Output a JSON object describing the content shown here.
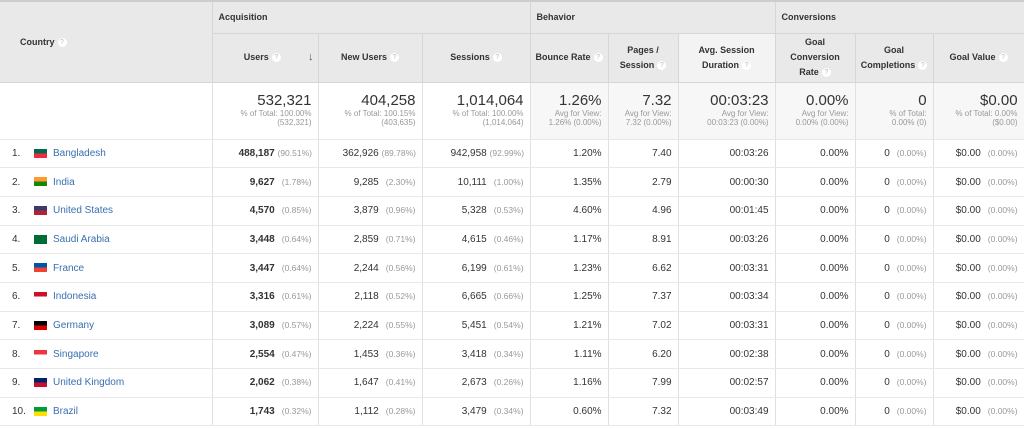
{
  "header": {
    "country": "Country",
    "groups": [
      "Acquisition",
      "Behavior",
      "Conversions"
    ],
    "columns": [
      "Users",
      "New Users",
      "Sessions",
      "Bounce Rate",
      "Pages / Session",
      "Avg. Session Duration",
      "Goal Conversion Rate",
      "Goal Completions",
      "Goal Value"
    ],
    "help_icon": "?",
    "sort_icon": "↓"
  },
  "totals": [
    {
      "value": "532,321",
      "l1": "% of Total: 100.00%",
      "l2": "(532,321)"
    },
    {
      "value": "404,258",
      "l1": "% of Total: 100.15%",
      "l2": "(403,635)"
    },
    {
      "value": "1,014,064",
      "l1": "% of Total: 100.00%",
      "l2": "(1,014,064)"
    },
    {
      "value": "1.26%",
      "l1": "Avg for View:",
      "l2": "1.26% (0.00%)"
    },
    {
      "value": "7.32",
      "l1": "Avg for View:",
      "l2": "7.32 (0.00%)"
    },
    {
      "value": "00:03:23",
      "l1": "Avg for View:",
      "l2": "00:03:23 (0.00%)"
    },
    {
      "value": "0.00%",
      "l1": "Avg for View:",
      "l2": "0.00% (0.00%)"
    },
    {
      "value": "0",
      "l1": "% of Total:",
      "l2": "0.00% (0)"
    },
    {
      "value": "$0.00",
      "l1": "% of Total: 0.00%",
      "l2": "($0.00)"
    }
  ],
  "rows": [
    {
      "idx": "1.",
      "country": "Bangladesh",
      "flag": [
        "#006a4e",
        "#f42a41"
      ],
      "users": "488,187",
      "users_pct": "(90.51%)",
      "new": "362,926",
      "new_pct": "(89.78%)",
      "sessions": "942,958",
      "sessions_pct": "(92.99%)",
      "bounce": "1.20%",
      "pages": "7.40",
      "dur": "00:03:26",
      "gcr": "0.00%",
      "gc": "0",
      "gc_pct": "(0.00%)",
      "gv": "$0.00",
      "gv_pct": "(0.00%)"
    },
    {
      "idx": "2.",
      "country": "India",
      "flag": [
        "#ff9933",
        "#138808"
      ],
      "users": "9,627",
      "users_pct": "(1.78%)",
      "new": "9,285",
      "new_pct": "(2.30%)",
      "sessions": "10,111",
      "sessions_pct": "(1.00%)",
      "bounce": "1.35%",
      "pages": "2.79",
      "dur": "00:00:30",
      "gcr": "0.00%",
      "gc": "0",
      "gc_pct": "(0.00%)",
      "gv": "$0.00",
      "gv_pct": "(0.00%)"
    },
    {
      "idx": "3.",
      "country": "United States",
      "flag": [
        "#3c3b6e",
        "#b22234"
      ],
      "users": "4,570",
      "users_pct": "(0.85%)",
      "new": "3,879",
      "new_pct": "(0.96%)",
      "sessions": "5,328",
      "sessions_pct": "(0.53%)",
      "bounce": "4.60%",
      "pages": "4.96",
      "dur": "00:01:45",
      "gcr": "0.00%",
      "gc": "0",
      "gc_pct": "(0.00%)",
      "gv": "$0.00",
      "gv_pct": "(0.00%)"
    },
    {
      "idx": "4.",
      "country": "Saudi Arabia",
      "flag": [
        "#006c35",
        "#006c35"
      ],
      "users": "3,448",
      "users_pct": "(0.64%)",
      "new": "2,859",
      "new_pct": "(0.71%)",
      "sessions": "4,615",
      "sessions_pct": "(0.46%)",
      "bounce": "1.17%",
      "pages": "8.91",
      "dur": "00:03:26",
      "gcr": "0.00%",
      "gc": "0",
      "gc_pct": "(0.00%)",
      "gv": "$0.00",
      "gv_pct": "(0.00%)"
    },
    {
      "idx": "5.",
      "country": "France",
      "flag": [
        "#0055a4",
        "#ef4135"
      ],
      "users": "3,447",
      "users_pct": "(0.64%)",
      "new": "2,244",
      "new_pct": "(0.56%)",
      "sessions": "6,199",
      "sessions_pct": "(0.61%)",
      "bounce": "1.23%",
      "pages": "6.62",
      "dur": "00:03:31",
      "gcr": "0.00%",
      "gc": "0",
      "gc_pct": "(0.00%)",
      "gv": "$0.00",
      "gv_pct": "(0.00%)"
    },
    {
      "idx": "6.",
      "country": "Indonesia",
      "flag": [
        "#ce1126",
        "#ffffff"
      ],
      "users": "3,316",
      "users_pct": "(0.61%)",
      "new": "2,118",
      "new_pct": "(0.52%)",
      "sessions": "6,665",
      "sessions_pct": "(0.66%)",
      "bounce": "1.25%",
      "pages": "7.37",
      "dur": "00:03:34",
      "gcr": "0.00%",
      "gc": "0",
      "gc_pct": "(0.00%)",
      "gv": "$0.00",
      "gv_pct": "(0.00%)"
    },
    {
      "idx": "7.",
      "country": "Germany",
      "flag": [
        "#000000",
        "#dd0000"
      ],
      "users": "3,089",
      "users_pct": "(0.57%)",
      "new": "2,224",
      "new_pct": "(0.55%)",
      "sessions": "5,451",
      "sessions_pct": "(0.54%)",
      "bounce": "1.21%",
      "pages": "7.02",
      "dur": "00:03:31",
      "gcr": "0.00%",
      "gc": "0",
      "gc_pct": "(0.00%)",
      "gv": "$0.00",
      "gv_pct": "(0.00%)"
    },
    {
      "idx": "8.",
      "country": "Singapore",
      "flag": [
        "#ef3340",
        "#ffffff"
      ],
      "users": "2,554",
      "users_pct": "(0.47%)",
      "new": "1,453",
      "new_pct": "(0.36%)",
      "sessions": "3,418",
      "sessions_pct": "(0.34%)",
      "bounce": "1.11%",
      "pages": "6.20",
      "dur": "00:02:38",
      "gcr": "0.00%",
      "gc": "0",
      "gc_pct": "(0.00%)",
      "gv": "$0.00",
      "gv_pct": "(0.00%)"
    },
    {
      "idx": "9.",
      "country": "United Kingdom",
      "flag": [
        "#012169",
        "#c8102e"
      ],
      "users": "2,062",
      "users_pct": "(0.38%)",
      "new": "1,647",
      "new_pct": "(0.41%)",
      "sessions": "2,673",
      "sessions_pct": "(0.26%)",
      "bounce": "1.16%",
      "pages": "7.99",
      "dur": "00:02:57",
      "gcr": "0.00%",
      "gc": "0",
      "gc_pct": "(0.00%)",
      "gv": "$0.00",
      "gv_pct": "(0.00%)"
    },
    {
      "idx": "10.",
      "country": "Brazil",
      "flag": [
        "#009c3b",
        "#ffdf00"
      ],
      "users": "1,743",
      "users_pct": "(0.32%)",
      "new": "1,112",
      "new_pct": "(0.28%)",
      "sessions": "3,479",
      "sessions_pct": "(0.34%)",
      "bounce": "0.60%",
      "pages": "7.32",
      "dur": "00:03:49",
      "gcr": "0.00%",
      "gc": "0",
      "gc_pct": "(0.00%)",
      "gv": "$0.00",
      "gv_pct": "(0.00%)"
    }
  ]
}
